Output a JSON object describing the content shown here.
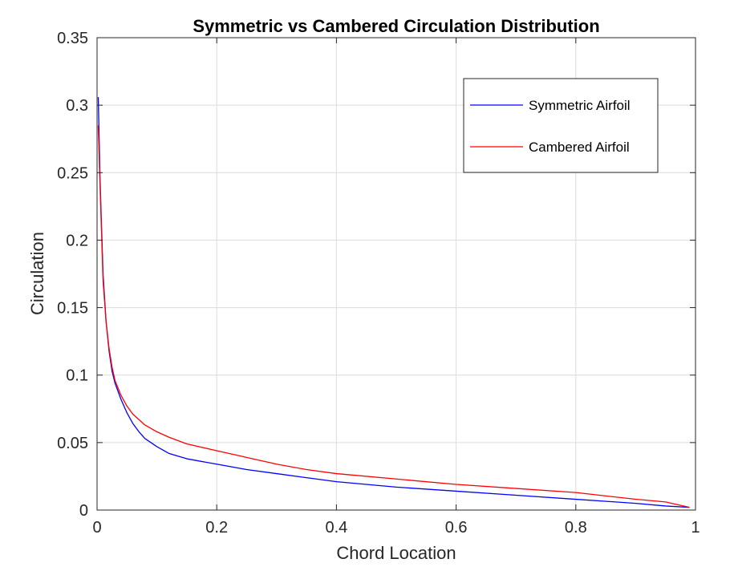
{
  "chart_data": {
    "type": "line",
    "title": "Symmetric vs Cambered Circulation Distribution",
    "xlabel": "Chord Location",
    "ylabel": "Circulation",
    "xlim": [
      0,
      1
    ],
    "ylim": [
      0,
      0.35
    ],
    "x_ticks": [
      "0",
      "0.2",
      "0.4",
      "0.6",
      "0.8",
      "1"
    ],
    "y_ticks": [
      "0",
      "0.05",
      "0.1",
      "0.15",
      "0.2",
      "0.25",
      "0.3",
      "0.35"
    ],
    "x_tick_values": [
      0,
      0.2,
      0.4,
      0.6,
      0.8,
      1
    ],
    "y_tick_values": [
      0,
      0.05,
      0.1,
      0.15,
      0.2,
      0.25,
      0.3,
      0.35
    ],
    "grid": true,
    "legend_position": "top-right",
    "series": [
      {
        "name": "Symmetric Airfoil",
        "color": "#0000ff",
        "x": [
          0.002,
          0.005,
          0.01,
          0.015,
          0.02,
          0.025,
          0.03,
          0.04,
          0.05,
          0.06,
          0.07,
          0.08,
          0.1,
          0.12,
          0.15,
          0.2,
          0.25,
          0.3,
          0.35,
          0.4,
          0.5,
          0.6,
          0.7,
          0.8,
          0.9,
          0.95,
          0.99
        ],
        "y": [
          0.306,
          0.245,
          0.175,
          0.14,
          0.118,
          0.103,
          0.094,
          0.082,
          0.072,
          0.064,
          0.058,
          0.053,
          0.047,
          0.042,
          0.038,
          0.034,
          0.03,
          0.027,
          0.024,
          0.021,
          0.017,
          0.014,
          0.011,
          0.008,
          0.005,
          0.003,
          0.002
        ]
      },
      {
        "name": "Cambered Airfoil",
        "color": "#ff0000",
        "x": [
          0.002,
          0.005,
          0.01,
          0.015,
          0.02,
          0.025,
          0.03,
          0.04,
          0.05,
          0.06,
          0.07,
          0.08,
          0.1,
          0.12,
          0.15,
          0.2,
          0.23,
          0.25,
          0.28,
          0.3,
          0.35,
          0.4,
          0.5,
          0.6,
          0.7,
          0.8,
          0.9,
          0.95,
          0.99
        ],
        "y": [
          0.285,
          0.24,
          0.17,
          0.14,
          0.12,
          0.106,
          0.096,
          0.085,
          0.077,
          0.071,
          0.067,
          0.063,
          0.058,
          0.054,
          0.049,
          0.044,
          0.041,
          0.039,
          0.036,
          0.034,
          0.03,
          0.027,
          0.023,
          0.019,
          0.016,
          0.013,
          0.008,
          0.006,
          0.002
        ]
      }
    ]
  }
}
